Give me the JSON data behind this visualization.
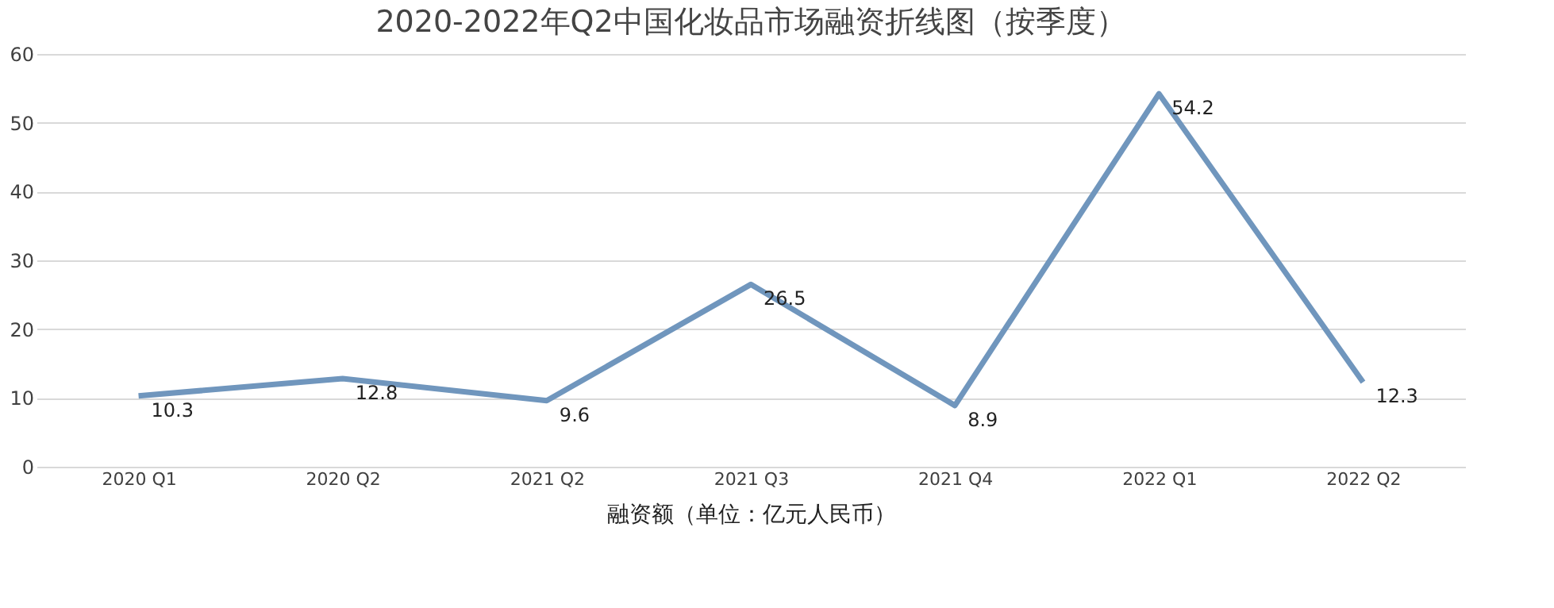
{
  "chart_data": {
    "type": "line",
    "title": "2020-2022年Q2中国化妆品市场融资折线图（按季度）",
    "xlabel": "融资额（单位：亿元人民币）",
    "categories": [
      "2020 Q1",
      "2020 Q2",
      "2021 Q2",
      "2021 Q3",
      "2021 Q4",
      "2022 Q1",
      "2022 Q2"
    ],
    "series": [
      {
        "color": "#7096bd",
        "values": [
          10.3,
          12.8,
          9.6,
          26.5,
          8.9,
          54.2,
          12.3
        ]
      }
    ],
    "ylim": [
      0,
      60
    ],
    "yticks": [
      0,
      10,
      20,
      30,
      40,
      50,
      60
    ],
    "grid": "y",
    "data_labels": true,
    "marker": "none",
    "line_style": "solid"
  }
}
